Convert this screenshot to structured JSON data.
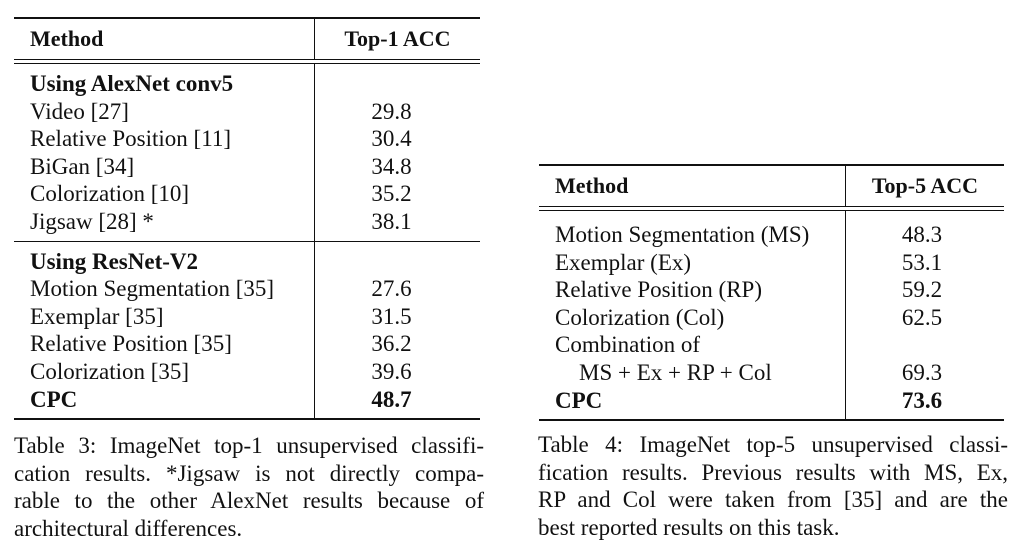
{
  "table3": {
    "header": {
      "method": "Method",
      "metric": "Top-1 ACC"
    },
    "sections": [
      {
        "title": "Using AlexNet conv5",
        "rows": [
          {
            "method": "Video [27]",
            "value": "29.8"
          },
          {
            "method": "Relative Position [11]",
            "value": "30.4"
          },
          {
            "method": "BiGan [34]",
            "value": "34.8"
          },
          {
            "method": "Colorization [10]",
            "value": "35.2"
          },
          {
            "method": "Jigsaw [28] *",
            "value": "38.1"
          }
        ]
      },
      {
        "title": "Using ResNet-V2",
        "rows": [
          {
            "method": "Motion Segmentation [35]",
            "value": "27.6"
          },
          {
            "method": "Exemplar [35]",
            "value": "31.5"
          },
          {
            "method": "Relative Position [35]",
            "value": "36.2"
          },
          {
            "method": "Colorization [35]",
            "value": "39.6"
          },
          {
            "method": "CPC",
            "value": "48.7",
            "bold": true
          }
        ]
      }
    ],
    "caption": [
      "Table 3: ImageNet top-1 unsupervised classifi-",
      "cation results. *Jigsaw is not directly compa-",
      "rable to the other AlexNet results because of",
      "architectural differences."
    ]
  },
  "table4": {
    "header": {
      "method": "Method",
      "metric": "Top-5 ACC"
    },
    "rows": [
      {
        "method": "Motion Segmentation (MS)",
        "value": "48.3"
      },
      {
        "method": "Exemplar (Ex)",
        "value": "53.1"
      },
      {
        "method": "Relative Position (RP)",
        "value": "59.2"
      },
      {
        "method": "Colorization (Col)",
        "value": "62.5"
      },
      {
        "method": "Combination of",
        "value": ""
      },
      {
        "method": "MS + Ex + RP + Col",
        "value": "69.3",
        "indent": true
      },
      {
        "method": "CPC",
        "value": "73.6",
        "bold": true
      }
    ],
    "caption": [
      "Table 4: ImageNet top-5 unsupervised classi-",
      "fication results. Previous results with MS, Ex,",
      "RP and Col were taken from [35] and are the",
      "best reported results on this task."
    ]
  }
}
